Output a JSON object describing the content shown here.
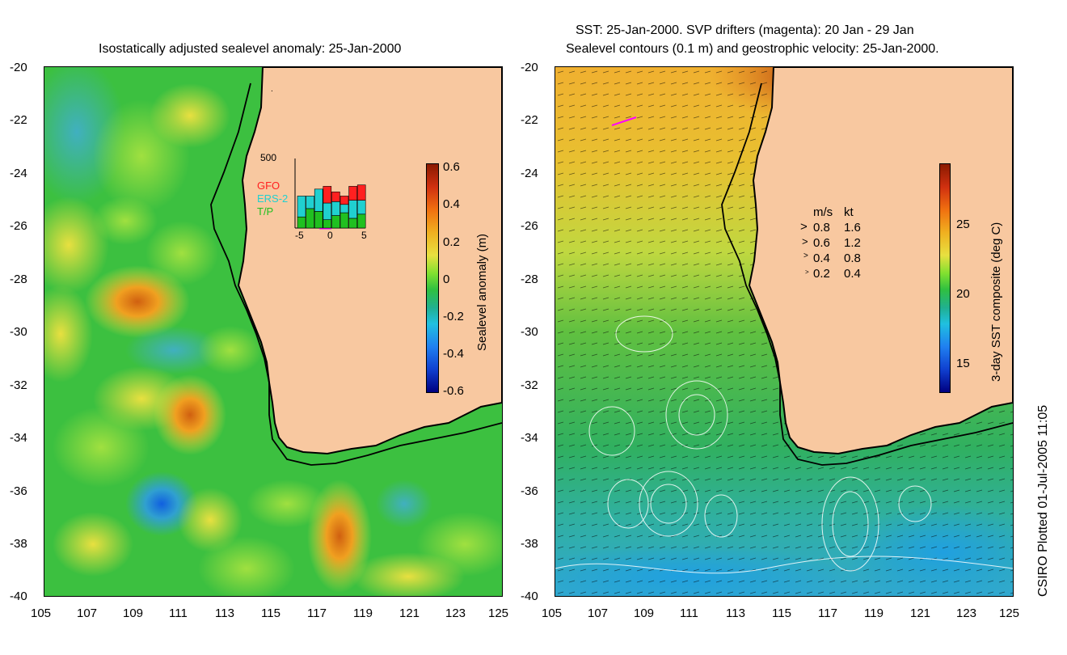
{
  "left_panel": {
    "title": "Isostatically adjusted sealevel anomaly: 25-Jan-2000",
    "y_ticks": [
      "-20",
      "-22",
      "-24",
      "-26",
      "-28",
      "-30",
      "-32",
      "-34",
      "-36",
      "-38",
      "-40"
    ],
    "x_ticks": [
      "105",
      "107",
      "109",
      "111",
      "113",
      "115",
      "117",
      "119",
      "121",
      "123",
      "125"
    ],
    "colorbar": {
      "label": "Sealevel anomaly (m)",
      "ticks": [
        "0.6",
        "0.4",
        "0.2",
        "0",
        "-0.2",
        "-0.4",
        "-0.6"
      ],
      "range": [
        -0.6,
        0.6
      ]
    },
    "inset": {
      "ymax_label": "500",
      "legend": [
        {
          "name": "GFO",
          "color": "#ff2020"
        },
        {
          "name": "ERS-2",
          "color": "#20d0d0"
        },
        {
          "name": "T/P",
          "color": "#20c020"
        }
      ],
      "x_ticks": [
        "-5",
        "0",
        "5"
      ],
      "bars": [
        {
          "tp": 80,
          "ers": 150,
          "gfo": 0
        },
        {
          "tp": 140,
          "ers": 90,
          "gfo": 0
        },
        {
          "tp": 120,
          "ers": 160,
          "gfo": 0
        },
        {
          "tp": 60,
          "ers": 120,
          "gfo": 120
        },
        {
          "tp": 90,
          "ers": 100,
          "gfo": 70
        },
        {
          "tp": 110,
          "ers": 60,
          "gfo": 60
        },
        {
          "tp": 70,
          "ers": 130,
          "gfo": 100
        },
        {
          "tp": 100,
          "ers": 100,
          "gfo": 110
        }
      ]
    }
  },
  "right_panel": {
    "title_line1": "SST: 25-Jan-2000. SVP drifters (magenta): 20 Jan - 29 Jan",
    "title_line2": "Sealevel contours (0.1 m) and geostrophic velocity: 25-Jan-2000.",
    "y_ticks": [
      "-20",
      "-22",
      "-24",
      "-26",
      "-28",
      "-30",
      "-32",
      "-34",
      "-36",
      "-38",
      "-40"
    ],
    "x_ticks": [
      "105",
      "107",
      "109",
      "111",
      "113",
      "115",
      "117",
      "119",
      "121",
      "123",
      "125"
    ],
    "colorbar": {
      "label": "3-day SST composite (deg C)",
      "ticks": [
        "25",
        "20",
        "15"
      ],
      "range": [
        13,
        29
      ]
    },
    "velocity_legend": {
      "header_ms": "m/s",
      "header_kt": "kt",
      "rows": [
        {
          "ms": "0.8",
          "kt": "1.6"
        },
        {
          "ms": "0.6",
          "kt": "1.2"
        },
        {
          "ms": "0.4",
          "kt": "0.8"
        },
        {
          "ms": "0.2",
          "kt": "0.4"
        }
      ]
    }
  },
  "footer": {
    "plot_credit": "CSIRO Plotted 01-Jul-2005 11:05"
  },
  "colors": {
    "land": "#f8c8a0",
    "ocean_left": "#40c040",
    "ocean_right": "#40b860",
    "coast": "#000000"
  }
}
